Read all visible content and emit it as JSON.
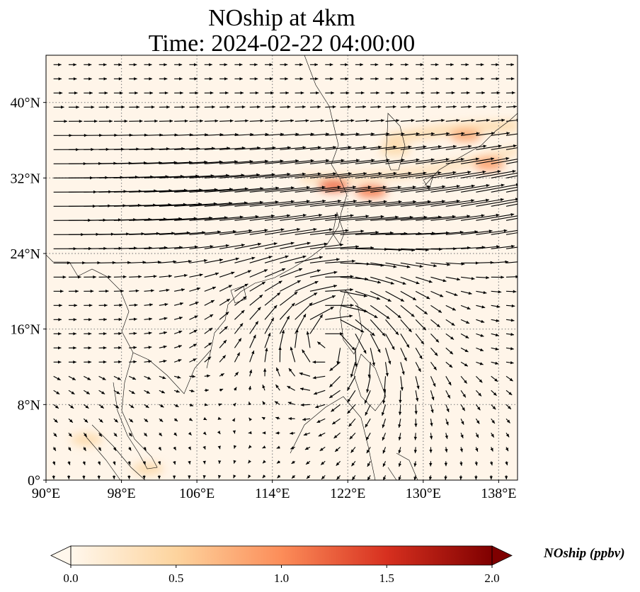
{
  "title_line1": "NOship at 4km",
  "title_line2": "Time: 2024-02-22 04:00:00",
  "map": {
    "projection": "PlateCarree",
    "lon_range": [
      90,
      140
    ],
    "lat_range": [
      0,
      45
    ],
    "gridlines": "dotted gray",
    "coastlines": true,
    "x_ticks": [
      {
        "lon": 90,
        "label": "90°E"
      },
      {
        "lon": 98,
        "label": "98°E"
      },
      {
        "lon": 106,
        "label": "106°E"
      },
      {
        "lon": 114,
        "label": "114°E"
      },
      {
        "lon": 122,
        "label": "122°E"
      },
      {
        "lon": 130,
        "label": "130°E"
      },
      {
        "lon": 138,
        "label": "138°E"
      }
    ],
    "y_ticks": [
      {
        "lat": 0,
        "label": "0°"
      },
      {
        "lat": 8,
        "label": "8°N"
      },
      {
        "lat": 16,
        "label": "16°N"
      },
      {
        "lat": 24,
        "label": "24°N"
      },
      {
        "lat": 32,
        "label": "32°N"
      },
      {
        "lat": 40,
        "label": "40°N"
      }
    ]
  },
  "colorbar": {
    "label": "NOship (ppbv)",
    "colormap": "OrRd",
    "min": 0.0,
    "max": 2.0,
    "extend": "both",
    "ticks": [
      "0.0",
      "0.5",
      "1.0",
      "1.5",
      "2.0"
    ]
  },
  "wind_field": {
    "style": "black quiver arrows",
    "pattern": "strong westerly jet 24°N–38°N, anticyclone near 120°E 15°N"
  },
  "hotspots": [
    {
      "lon": 120.5,
      "lat": 31.2,
      "value": 1.2
    },
    {
      "lon": 124.5,
      "lat": 30.6,
      "value": 1.1
    },
    {
      "lon": 134.5,
      "lat": 36.5,
      "value": 0.8
    },
    {
      "lon": 137.0,
      "lat": 33.5,
      "value": 0.9
    },
    {
      "lon": 127.0,
      "lat": 35.0,
      "value": 0.4
    },
    {
      "lon": 94.3,
      "lat": 4.3,
      "value": 0.4
    },
    {
      "lon": 100.8,
      "lat": 1.2,
      "value": 0.4
    }
  ]
}
